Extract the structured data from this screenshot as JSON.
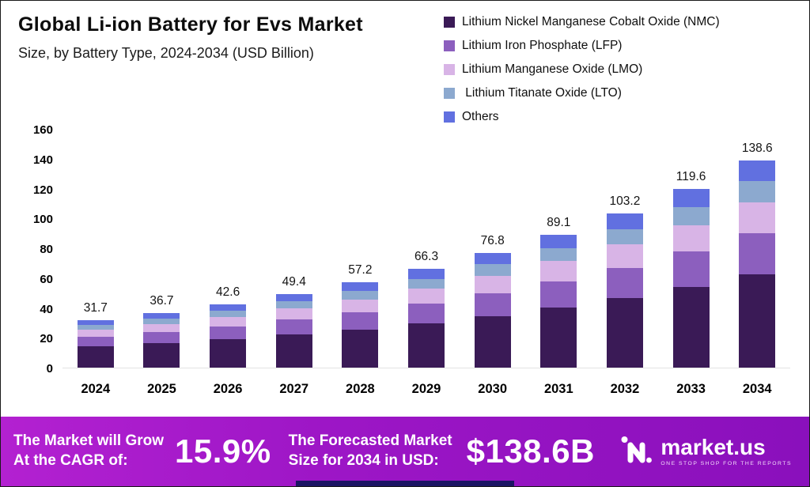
{
  "header": {
    "title": "Global Li-ion Battery for Evs Market",
    "subtitle": "Size, by Battery Type, 2024-2034 (USD Billion)"
  },
  "legend": {
    "items": [
      {
        "label": "Lithium Nickel Manganese Cobalt Oxide (NMC)",
        "color": "#3a1a56"
      },
      {
        "label": "Lithium Iron Phosphate (LFP)",
        "color": "#8c5fbe"
      },
      {
        "label": "Lithium Manganese Oxide (LMO)",
        "color": "#d8b4e6"
      },
      {
        "label": " Lithium Titanate Oxide (LTO)",
        "color": "#8ca9cf"
      },
      {
        "label": "Others",
        "color": "#6170e0"
      }
    ]
  },
  "chart_data": {
    "type": "bar",
    "stacked": true,
    "title": "Global Li-ion Battery for Evs Market Size, by Battery Type, 2024-2034 (USD Billion)",
    "categories": [
      "2024",
      "2025",
      "2026",
      "2027",
      "2028",
      "2029",
      "2030",
      "2031",
      "2032",
      "2033",
      "2034"
    ],
    "totals": [
      31.7,
      36.7,
      42.6,
      49.4,
      57.2,
      66.3,
      76.8,
      89.1,
      103.2,
      119.6,
      138.6
    ],
    "series": [
      {
        "name": "Lithium Nickel Manganese Cobalt Oxide (NMC)",
        "color": "#3a1a56",
        "values": [
          14.3,
          16.5,
          19.2,
          22.2,
          25.7,
          29.8,
          34.6,
          40.1,
          46.4,
          53.8,
          62.4
        ]
      },
      {
        "name": "Lithium Iron Phosphate (LFP)",
        "color": "#8c5fbe",
        "values": [
          6.3,
          7.3,
          8.5,
          9.9,
          11.4,
          13.3,
          15.4,
          17.8,
          20.6,
          23.9,
          27.7
        ]
      },
      {
        "name": "Lithium Manganese Oxide (LMO)",
        "color": "#d8b4e6",
        "values": [
          4.8,
          5.5,
          6.4,
          7.4,
          8.6,
          9.9,
          11.5,
          13.4,
          15.5,
          17.9,
          20.8
        ]
      },
      {
        "name": "Lithium Titanate Oxide (LTO)",
        "color": "#8ca9cf",
        "values": [
          3.2,
          3.7,
          4.3,
          4.9,
          5.7,
          6.6,
          7.7,
          8.9,
          10.3,
          12.0,
          13.9
        ]
      },
      {
        "name": "Others",
        "color": "#6170e0",
        "values": [
          3.1,
          3.7,
          4.2,
          5.0,
          5.8,
          6.7,
          7.6,
          8.9,
          10.4,
          12.0,
          13.8
        ]
      }
    ],
    "xlabel": "",
    "ylabel": "",
    "ylim": [
      0,
      160
    ],
    "yticks": [
      0,
      20,
      40,
      60,
      80,
      100,
      120,
      140,
      160
    ],
    "grid": false,
    "legend_position": "top-right"
  },
  "banner": {
    "cagr_label_line1": "The Market will Grow",
    "cagr_label_line2": "At the CAGR of:",
    "cagr_value": "15.9%",
    "forecast_label_line1": "The Forecasted Market",
    "forecast_label_line2": "Size for 2034 in USD:",
    "forecast_value": "$138.6B",
    "brand": "market.us",
    "brand_tagline": "ONE STOP SHOP FOR THE REPORTS"
  }
}
